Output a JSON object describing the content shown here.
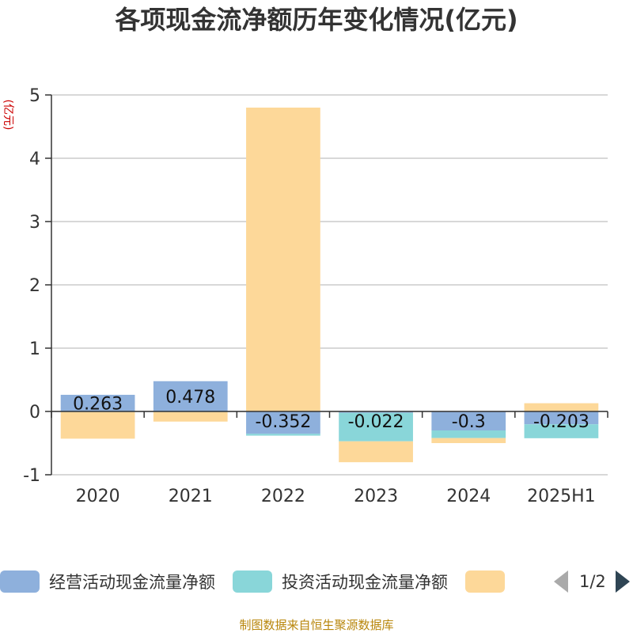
{
  "chart_data": {
    "type": "bar",
    "title": "各项现金流净额历年变化情况(亿元)",
    "ylabel": "(亿元)",
    "categories": [
      "2020",
      "2021",
      "2022",
      "2023",
      "2024",
      "2025H1"
    ],
    "ylim": [
      -1,
      5
    ],
    "yticks": [
      "5",
      "4",
      "3",
      "2",
      "1",
      "0",
      "-1"
    ],
    "grid": true,
    "stacked": true,
    "series": [
      {
        "name": "经营活动现金流量净额",
        "color": "#8eb0dc",
        "values": [
          0.263,
          0.478,
          -0.352,
          -0.022,
          -0.3,
          -0.203
        ],
        "labels": [
          "0.263",
          "0.478",
          "-0.352",
          "-0.022",
          "-0.3",
          "-0.203"
        ]
      },
      {
        "name": "投资活动现金流量净额",
        "color": "#89d6d9",
        "values": [
          -0.01,
          -0.01,
          -0.03,
          -0.45,
          -0.12,
          -0.22
        ]
      },
      {
        "color": "#fdd899",
        "values": [
          -0.42,
          -0.15,
          4.8,
          -0.33,
          -0.08,
          0.13
        ]
      }
    ],
    "legend_position": "bottom"
  },
  "legend": {
    "items": [
      {
        "label": "经营活动现金流量净额",
        "color": "#8eb0dc"
      },
      {
        "label": "投资活动现金流量净额",
        "color": "#89d6d9"
      },
      {
        "label": "",
        "color": "#fdd899"
      }
    ],
    "page": "1/2"
  },
  "source": "制图数据来自恒生聚源数据库"
}
